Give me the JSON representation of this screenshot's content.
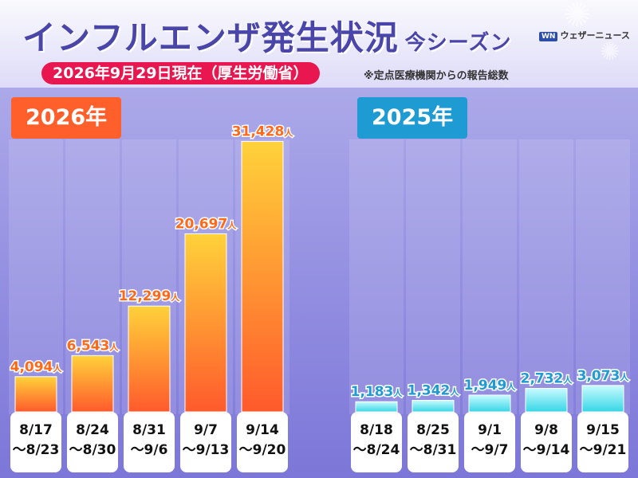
{
  "header": {
    "title": "インフルエンザ発生状況",
    "title_sub": "今シーズン",
    "brand_logo": "WN",
    "brand_name": "ウェザーニュース",
    "date_pill": "2026年9月29日現在（厚生労働省）",
    "note": "※定点医療機関からの報告総数"
  },
  "colors": {
    "title": "#4a45a8",
    "pill": "#e8174f",
    "year_2026": "#ff5f2a",
    "year_2025": "#1f9bd3",
    "bar_2026_top": "#ffd23a",
    "bar_2026_bottom": "#ff5a2c",
    "bar_2025_top": "#c9fbff",
    "bar_2025_bottom": "#36d6e6",
    "value_2026": "#ff6a1a",
    "value_2025": "#1f9bd3"
  },
  "chart_data": [
    {
      "type": "bar",
      "title": "2026年",
      "unit": "人",
      "categories": [
        "8/17\n～8/23",
        "8/24\n～8/30",
        "8/31\n～9/6",
        "9/7\n～9/13",
        "9/14\n～9/20"
      ],
      "category_lines": [
        [
          "8/17",
          "～8/23"
        ],
        [
          "8/24",
          "～8/30"
        ],
        [
          "8/31",
          "～9/6"
        ],
        [
          "9/7",
          "～9/13"
        ],
        [
          "9/14",
          "～9/20"
        ]
      ],
      "values": [
        4094,
        6543,
        12299,
        20697,
        31428
      ],
      "value_labels": [
        "4,094",
        "6,543",
        "12,299",
        "20,697",
        "31,428"
      ],
      "ylim": [
        0,
        35000
      ]
    },
    {
      "type": "bar",
      "title": "2025年",
      "unit": "人",
      "categories": [
        "8/18\n～8/24",
        "8/25\n～8/31",
        "9/1\n～9/7",
        "9/8\n～9/14",
        "9/15\n～9/21"
      ],
      "category_lines": [
        [
          "8/18",
          "～8/24"
        ],
        [
          "8/25",
          "～8/31"
        ],
        [
          "9/1",
          "～9/7"
        ],
        [
          "9/8",
          "～9/14"
        ],
        [
          "9/15",
          "～9/21"
        ]
      ],
      "values": [
        1183,
        1342,
        1949,
        2732,
        3073
      ],
      "value_labels": [
        "1,183",
        "1,342",
        "1,949",
        "2,732",
        "3,073"
      ],
      "ylim": [
        0,
        35000
      ]
    }
  ]
}
